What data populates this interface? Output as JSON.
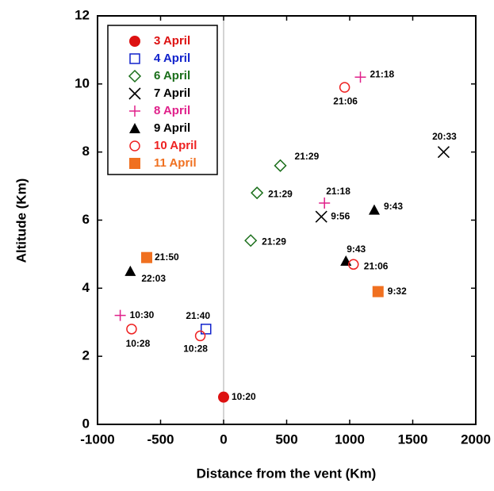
{
  "chart_data": {
    "type": "scatter",
    "x_label": "Distance from the vent (Km)",
    "y_label": "Altitude (Km)",
    "xlim": [
      -1000,
      2000
    ],
    "xticks": [
      -1000,
      -500,
      0,
      500,
      1000,
      1500,
      2000
    ],
    "ylim": [
      0,
      12
    ],
    "yticks": [
      0,
      2,
      4,
      6,
      8,
      10,
      12
    ],
    "legend": "upper left",
    "series": [
      {
        "name": "3 April",
        "color": "#dd1111",
        "marker": "filled-circle",
        "x": [
          0
        ],
        "y": [
          0.8
        ],
        "labels": [
          "10:20"
        ]
      },
      {
        "name": "4 April",
        "color": "#1122cc",
        "marker": "open-square",
        "x": [
          -140
        ],
        "y": [
          2.8
        ],
        "labels": [
          "21:40"
        ]
      },
      {
        "name": "6 April",
        "color": "#1a6e1a",
        "marker": "open-diamond",
        "x": [
          450,
          265,
          215
        ],
        "y": [
          7.6,
          6.8,
          5.4
        ],
        "labels": [
          "21:29",
          "21:29",
          "21:29"
        ]
      },
      {
        "name": "7 April",
        "color": "#000000",
        "marker": "cross",
        "x": [
          1745,
          775
        ],
        "y": [
          8.0,
          6.1
        ],
        "labels": [
          "20:33",
          "9:56"
        ]
      },
      {
        "name": "8 April",
        "color": "#e0208a",
        "marker": "plus",
        "x": [
          1085,
          800,
          -820
        ],
        "y": [
          10.2,
          6.5,
          3.2
        ],
        "labels": [
          "21:18",
          "21:18",
          "10:30"
        ]
      },
      {
        "name": "9 April",
        "color": "#000000",
        "marker": "triangle",
        "x": [
          -740,
          1195,
          970
        ],
        "y": [
          4.5,
          6.3,
          4.8
        ],
        "labels": [
          "22:03",
          "9:43",
          "9:43"
        ]
      },
      {
        "name": "10 April",
        "color": "#ee2222",
        "marker": "open-circle",
        "x": [
          960,
          1030,
          -730,
          -185
        ],
        "y": [
          9.9,
          4.7,
          2.8,
          2.6
        ],
        "labels": [
          "21:06",
          "21:06",
          "10:28",
          "10:28"
        ]
      },
      {
        "name": "11 April",
        "color": "#f07020",
        "marker": "filled-square",
        "x": [
          -610,
          1225
        ],
        "y": [
          4.9,
          3.9
        ],
        "labels": [
          "21:50",
          "9:32"
        ]
      }
    ]
  }
}
